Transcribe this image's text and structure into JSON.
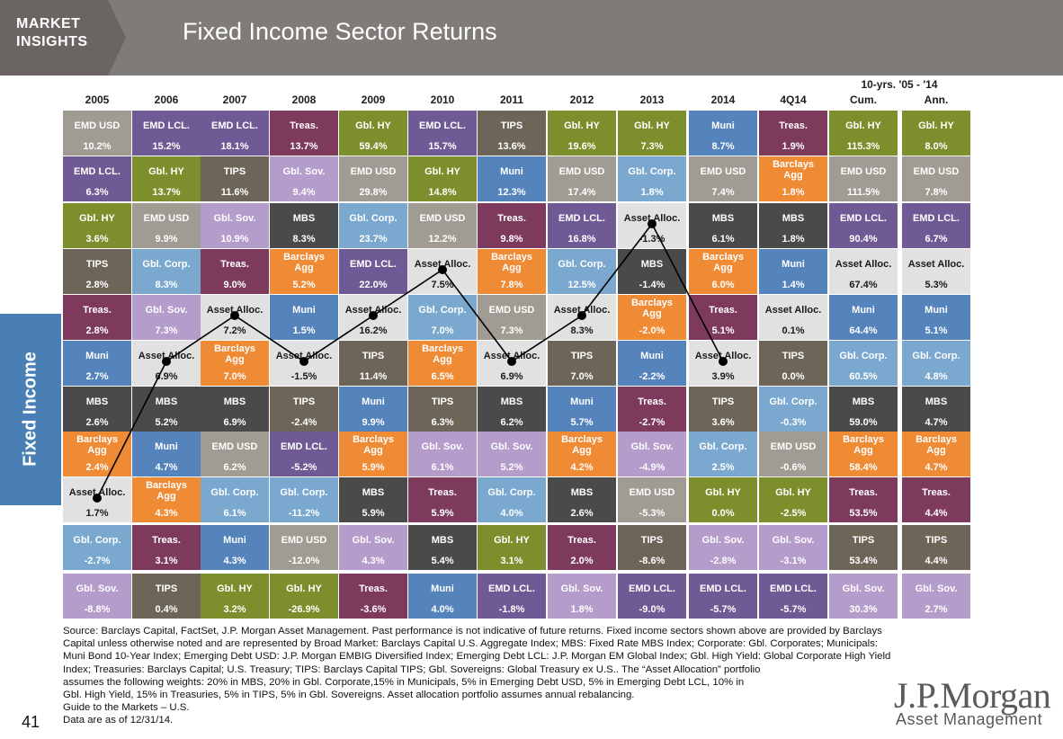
{
  "header": {
    "market_insights_line1": "MARKET",
    "market_insights_line2": "INSIGHTS",
    "title": "Fixed Income Sector Returns"
  },
  "side_label": "Fixed Income",
  "page_number": "41",
  "logo": {
    "name": "J.P.Morgan",
    "sub": "Asset Management"
  },
  "colors": {
    "EMD USD": "#a09b93",
    "EMD LCL.": "#6f5a95",
    "Treas.": "#7e3a5d",
    "Gbl. HY": "#7c8f2c",
    "TIPS": "#6e6559",
    "Muni": "#5584bd",
    "Gbl. Corp.": "#7aa8cf",
    "Gbl. Sov.": "#b49ccb",
    "MBS": "#4a4a4a",
    "Barclays Agg": "#ef8a35",
    "Asset Alloc.": "#e1e1e1"
  },
  "chart_data": {
    "type": "table",
    "title": "Fixed Income Sector Returns",
    "group_header": "10-yrs. '05 - '14",
    "columns": [
      "2005",
      "2006",
      "2007",
      "2008",
      "2009",
      "2010",
      "2011",
      "2012",
      "2013",
      "2014",
      "4Q14",
      "Cum.",
      "Ann."
    ],
    "rows": [
      [
        [
          "EMD USD",
          "10.2%"
        ],
        [
          "EMD LCL.",
          "15.2%"
        ],
        [
          "EMD LCL.",
          "18.1%"
        ],
        [
          "Treas.",
          "13.7%"
        ],
        [
          "Gbl. HY",
          "59.4%"
        ],
        [
          "EMD LCL.",
          "15.7%"
        ],
        [
          "TIPS",
          "13.6%"
        ],
        [
          "Gbl. HY",
          "19.6%"
        ],
        [
          "Gbl. HY",
          "7.3%"
        ],
        [
          "Muni",
          "8.7%"
        ],
        [
          "Treas.",
          "1.9%"
        ],
        [
          "Gbl. HY",
          "115.3%"
        ],
        [
          "Gbl. HY",
          "8.0%"
        ]
      ],
      [
        [
          "EMD LCL.",
          "6.3%"
        ],
        [
          "Gbl. HY",
          "13.7%"
        ],
        [
          "TIPS",
          "11.6%"
        ],
        [
          "Gbl. Sov.",
          "9.4%"
        ],
        [
          "EMD USD",
          "29.8%"
        ],
        [
          "Gbl. HY",
          "14.8%"
        ],
        [
          "Muni",
          "12.3%"
        ],
        [
          "EMD USD",
          "17.4%"
        ],
        [
          "Gbl. Corp.",
          "1.8%"
        ],
        [
          "EMD USD",
          "7.4%"
        ],
        [
          "Barclays Agg",
          "1.8%"
        ],
        [
          "EMD USD",
          "111.5%"
        ],
        [
          "EMD USD",
          "7.8%"
        ]
      ],
      [
        [
          "Gbl. HY",
          "3.6%"
        ],
        [
          "EMD USD",
          "9.9%"
        ],
        [
          "Gbl. Sov.",
          "10.9%"
        ],
        [
          "MBS",
          "8.3%"
        ],
        [
          "Gbl. Corp.",
          "23.7%"
        ],
        [
          "EMD USD",
          "12.2%"
        ],
        [
          "Treas.",
          "9.8%"
        ],
        [
          "EMD LCL.",
          "16.8%"
        ],
        [
          "Asset Alloc.",
          "-1.3%"
        ],
        [
          "MBS",
          "6.1%"
        ],
        [
          "MBS",
          "1.8%"
        ],
        [
          "EMD LCL.",
          "90.4%"
        ],
        [
          "EMD LCL.",
          "6.7%"
        ]
      ],
      [
        [
          "TIPS",
          "2.8%"
        ],
        [
          "Gbl. Corp.",
          "8.3%"
        ],
        [
          "Treas.",
          "9.0%"
        ],
        [
          "Barclays Agg",
          "5.2%"
        ],
        [
          "EMD LCL.",
          "22.0%"
        ],
        [
          "Asset Alloc.",
          "7.5%"
        ],
        [
          "Barclays Agg",
          "7.8%"
        ],
        [
          "Gbl. Corp.",
          "12.5%"
        ],
        [
          "MBS",
          "-1.4%"
        ],
        [
          "Barclays Agg",
          "6.0%"
        ],
        [
          "Muni",
          "1.4%"
        ],
        [
          "Asset Alloc.",
          "67.4%"
        ],
        [
          "Asset Alloc.",
          "5.3%"
        ]
      ],
      [
        [
          "Treas.",
          "2.8%"
        ],
        [
          "Gbl. Sov.",
          "7.3%"
        ],
        [
          "Asset Alloc.",
          "7.2%"
        ],
        [
          "Muni",
          "1.5%"
        ],
        [
          "Asset Alloc.",
          "16.2%"
        ],
        [
          "Gbl. Corp.",
          "7.0%"
        ],
        [
          "EMD USD",
          "7.3%"
        ],
        [
          "Asset Alloc.",
          "8.3%"
        ],
        [
          "Barclays Agg",
          "-2.0%"
        ],
        [
          "Treas.",
          "5.1%"
        ],
        [
          "Asset Alloc.",
          "0.1%"
        ],
        [
          "Muni",
          "64.4%"
        ],
        [
          "Muni",
          "5.1%"
        ]
      ],
      [
        [
          "Muni",
          "2.7%"
        ],
        [
          "Asset Alloc.",
          "6.9%"
        ],
        [
          "Barclays Agg",
          "7.0%"
        ],
        [
          "Asset Alloc.",
          "-1.5%"
        ],
        [
          "TIPS",
          "11.4%"
        ],
        [
          "Barclays Agg",
          "6.5%"
        ],
        [
          "Asset Alloc.",
          "6.9%"
        ],
        [
          "TIPS",
          "7.0%"
        ],
        [
          "Muni",
          "-2.2%"
        ],
        [
          "Asset Alloc.",
          "3.9%"
        ],
        [
          "TIPS",
          "0.0%"
        ],
        [
          "Gbl. Corp.",
          "60.5%"
        ],
        [
          "Gbl. Corp.",
          "4.8%"
        ]
      ],
      [
        [
          "MBS",
          "2.6%"
        ],
        [
          "MBS",
          "5.2%"
        ],
        [
          "MBS",
          "6.9%"
        ],
        [
          "TIPS",
          "-2.4%"
        ],
        [
          "Muni",
          "9.9%"
        ],
        [
          "TIPS",
          "6.3%"
        ],
        [
          "MBS",
          "6.2%"
        ],
        [
          "Muni",
          "5.7%"
        ],
        [
          "Treas.",
          "-2.7%"
        ],
        [
          "TIPS",
          "3.6%"
        ],
        [
          "Gbl. Corp.",
          "-0.3%"
        ],
        [
          "MBS",
          "59.0%"
        ],
        [
          "MBS",
          "4.7%"
        ]
      ],
      [
        [
          "Barclays Agg",
          "2.4%"
        ],
        [
          "Muni",
          "4.7%"
        ],
        [
          "EMD USD",
          "6.2%"
        ],
        [
          "EMD LCL.",
          "-5.2%"
        ],
        [
          "Barclays Agg",
          "5.9%"
        ],
        [
          "Gbl. Sov.",
          "6.1%"
        ],
        [
          "Gbl. Sov.",
          "5.2%"
        ],
        [
          "Barclays Agg",
          "4.2%"
        ],
        [
          "Gbl. Sov.",
          "-4.9%"
        ],
        [
          "Gbl. Corp.",
          "2.5%"
        ],
        [
          "EMD USD",
          "-0.6%"
        ],
        [
          "Barclays Agg",
          "58.4%"
        ],
        [
          "Barclays Agg",
          "4.7%"
        ]
      ],
      [
        [
          "Asset Alloc.",
          "1.7%"
        ],
        [
          "Barclays Agg",
          "4.3%"
        ],
        [
          "Gbl. Corp.",
          "6.1%"
        ],
        [
          "Gbl. Corp.",
          "-11.2%"
        ],
        [
          "MBS",
          "5.9%"
        ],
        [
          "Treas.",
          "5.9%"
        ],
        [
          "Gbl. Corp.",
          "4.0%"
        ],
        [
          "MBS",
          "2.6%"
        ],
        [
          "EMD USD",
          "-5.3%"
        ],
        [
          "Gbl. HY",
          "0.0%"
        ],
        [
          "Gbl. HY",
          "-2.5%"
        ],
        [
          "Treas.",
          "53.5%"
        ],
        [
          "Treas.",
          "4.4%"
        ]
      ],
      [
        [
          "Gbl. Corp.",
          "-2.7%"
        ],
        [
          "Treas.",
          "3.1%"
        ],
        [
          "Muni",
          "4.3%"
        ],
        [
          "EMD USD",
          "-12.0%"
        ],
        [
          "Gbl. Sov.",
          "4.3%"
        ],
        [
          "MBS",
          "5.4%"
        ],
        [
          "Gbl. HY",
          "3.1%"
        ],
        [
          "Treas.",
          "2.0%"
        ],
        [
          "TIPS",
          "-8.6%"
        ],
        [
          "Gbl. Sov.",
          "-2.8%"
        ],
        [
          "Gbl. Sov.",
          "-3.1%"
        ],
        [
          "TIPS",
          "53.4%"
        ],
        [
          "TIPS",
          "4.4%"
        ]
      ],
      [
        [
          "Gbl. Sov.",
          "-8.8%"
        ],
        [
          "TIPS",
          "0.4%"
        ],
        [
          "Gbl. HY",
          "3.2%"
        ],
        [
          "Gbl. HY",
          "-26.9%"
        ],
        [
          "Treas.",
          "-3.6%"
        ],
        [
          "Muni",
          "4.0%"
        ],
        [
          "EMD LCL.",
          "-1.8%"
        ],
        [
          "Gbl. Sov.",
          "1.8%"
        ],
        [
          "EMD LCL.",
          "-9.0%"
        ],
        [
          "EMD LCL.",
          "-5.7%"
        ],
        [
          "EMD LCL.",
          "-5.7%"
        ],
        [
          "Gbl. Sov.",
          "30.3%"
        ],
        [
          "Gbl. Sov.",
          "2.7%"
        ]
      ]
    ],
    "asset_alloc_line": {
      "series_columns": [
        "2005",
        "2006",
        "2007",
        "2008",
        "2009",
        "2010",
        "2011",
        "2012",
        "2013",
        "2014"
      ]
    }
  },
  "source_lines": [
    "Source: Barclays Capital, FactSet, J.P. Morgan Asset Management. Past performance is not indicative of future returns. Fixed income sectors shown above are provided by Barclays",
    "Capital unless otherwise noted and are represented by Broad Market: Barclays Capital U.S. Aggregate Index; MBS: Fixed Rate MBS Index; Corporate: Gbl. Corporates; Municipals:",
    "Muni Bond 10-Year Index; Emerging Debt USD: J.P. Morgan EMBIG Diversified Index; Emerging Debt LCL: J.P. Morgan EM Global Index; Gbl. High Yield: Global Corporate High Yield",
    "Index; Treasuries: Barclays Capital;  U.S. Treasury; TIPS: Barclays Capital TIPS; Gbl. Sovereigns: Global Treasury ex U.S.. The “Asset Allocation” portfolio",
    "assumes the following weights: 20% in MBS, 20% in Gbl. Corporate,15% in Municipals, 5% in Emerging Debt USD, 5% in Emerging Debt LCL, 10% in",
    "Gbl. High Yield, 15% in Treasuries, 5% in TIPS, 5% in Gbl. Sovereigns. Asset allocation portfolio assumes annual rebalancing.",
    "Guide to the Markets – U.S.",
    "Data are as of 12/31/14."
  ]
}
